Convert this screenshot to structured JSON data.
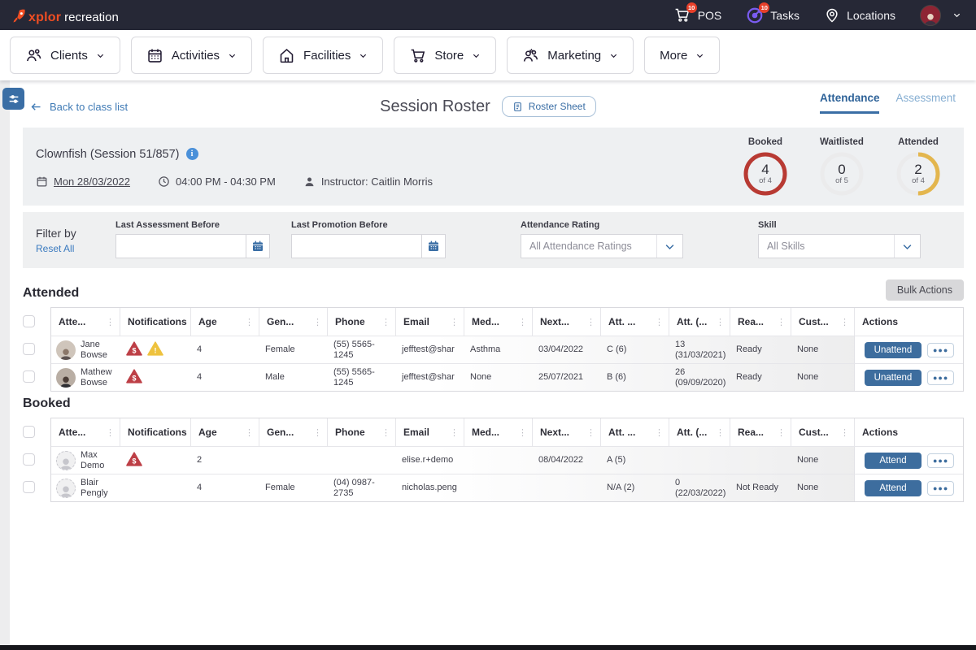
{
  "topbar": {
    "logo_primary": "xplor",
    "logo_secondary": "recreation",
    "pos": {
      "label": "POS",
      "badge": "10"
    },
    "tasks": {
      "label": "Tasks",
      "badge": "10"
    },
    "locations": {
      "label": "Locations"
    }
  },
  "nav": {
    "clients": "Clients",
    "activities": "Activities",
    "facilities": "Facilities",
    "store": "Store",
    "marketing": "Marketing",
    "more": "More"
  },
  "header": {
    "back_link": "Back to class list",
    "title": "Session Roster",
    "roster_sheet": "Roster Sheet",
    "tab_attendance": "Attendance",
    "tab_assessment": "Assessment"
  },
  "session": {
    "name": "Clownfish (Session 51/857)",
    "date": "Mon 28/03/2022",
    "time": "04:00 PM - 04:30 PM",
    "instructor": "Instructor: Caitlin Morris",
    "stats": [
      {
        "label": "Booked",
        "value": "4",
        "of": "of 4",
        "color": "#b83a33",
        "fraction": 1
      },
      {
        "label": "Waitlisted",
        "value": "0",
        "of": "of 5",
        "color": "#e9e9eb",
        "fraction": 0
      },
      {
        "label": "Attended",
        "value": "2",
        "of": "of 4",
        "color": "#e3b64e",
        "fraction": 0.5
      }
    ]
  },
  "filters": {
    "title": "Filter by",
    "reset": "Reset All",
    "last_assessment_label": "Last Assessment Before",
    "last_promotion_label": "Last Promotion Before",
    "attendance_rating_label": "Attendance Rating",
    "attendance_rating_value": "All Attendance Ratings",
    "skill_label": "Skill",
    "skill_value": "All Skills"
  },
  "columns": [
    "Atte...",
    "Notifications",
    "Age",
    "Gen...",
    "Phone",
    "Email",
    "Med...",
    "Next...",
    "Att. ...",
    "Att. (...",
    "Rea...",
    "Cust...",
    "Actions"
  ],
  "attended": {
    "title": "Attended",
    "bulk_actions": "Bulk Actions",
    "rows": [
      {
        "name": "Jane Bowse",
        "alerts": [
          "billing-alert",
          "warning-alert"
        ],
        "age": "4",
        "gender": "Female",
        "phone": "(55) 5565-1245",
        "email": "jefftest@shar",
        "medical": "Asthma",
        "next_assessment": "03/04/2022",
        "attendance_rating": "C (6)",
        "attendance_count": "13 (31/03/2021)",
        "readiness": "Ready",
        "custom": "None",
        "action": "Unattend"
      },
      {
        "name": "Mathew Bowse",
        "alerts": [
          "billing-alert"
        ],
        "age": "4",
        "gender": "Male",
        "phone": "(55) 5565-1245",
        "email": "jefftest@shar",
        "medical": "None",
        "next_assessment": "25/07/2021",
        "attendance_rating": "B (6)",
        "attendance_count": "26 (09/09/2020)",
        "readiness": "Ready",
        "custom": "None",
        "action": "Unattend"
      }
    ]
  },
  "booked": {
    "title": "Booked",
    "rows": [
      {
        "name": "Max Demo",
        "alerts": [
          "billing-alert"
        ],
        "age": "2",
        "gender": "",
        "phone": "",
        "email": "elise.r+demo",
        "medical": "",
        "next_assessment": "08/04/2022",
        "attendance_rating": "A (5)",
        "attendance_count": "",
        "readiness": "",
        "custom": "None",
        "action": "Attend"
      },
      {
        "name": "Blair Pengly",
        "alerts": [],
        "age": "4",
        "gender": "Female",
        "phone": "(04) 0987-2735",
        "email": "nicholas.peng",
        "medical": "",
        "next_assessment": "",
        "attendance_rating": "N/A (2)",
        "attendance_count": "0 (22/03/2022)",
        "readiness": "Not Ready",
        "custom": "None",
        "action": "Attend"
      }
    ]
  }
}
